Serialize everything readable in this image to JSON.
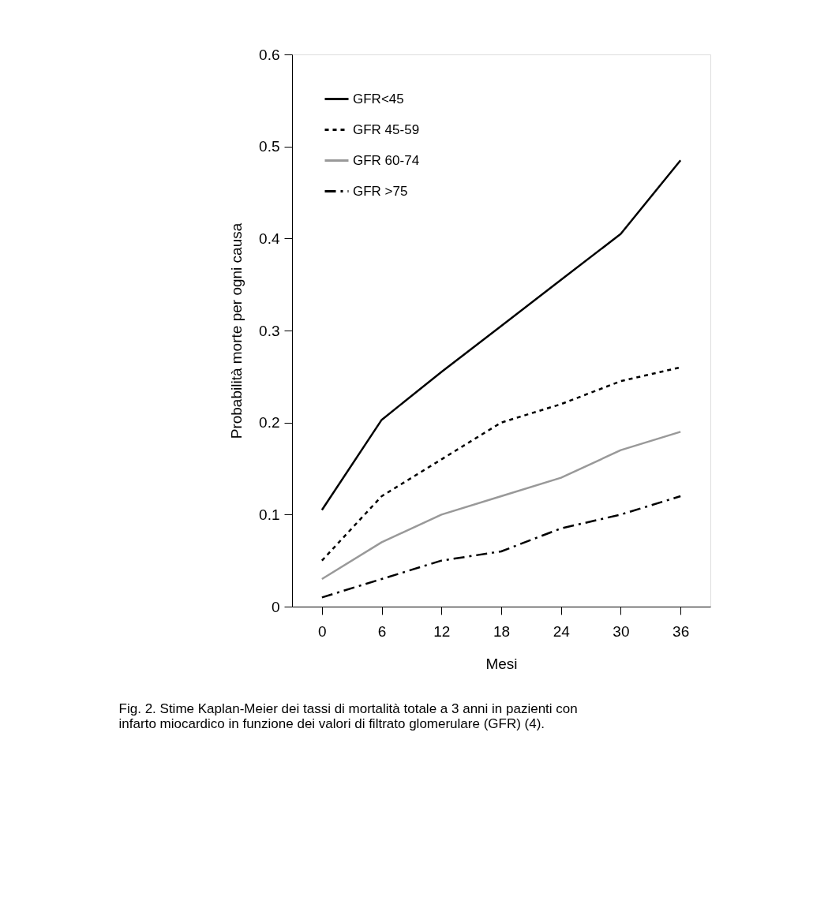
{
  "chart_data": {
    "type": "line",
    "xlabel": "Mesi",
    "ylabel": "Probabilità morte per ogni causa",
    "x": [
      0,
      6,
      12,
      18,
      24,
      30,
      36
    ],
    "series": [
      {
        "name": "GFR<45",
        "color": "#000000",
        "line_style": "solid",
        "values": [
          0.105,
          0.203,
          0.255,
          0.305,
          0.355,
          0.405,
          0.485
        ]
      },
      {
        "name": "GFR 45-59",
        "color": "#000000",
        "line_style": "dotted",
        "values": [
          0.05,
          0.12,
          0.16,
          0.2,
          0.22,
          0.245,
          0.26
        ]
      },
      {
        "name": "GFR 60-74",
        "color": "#999999",
        "line_style": "solid",
        "values": [
          0.03,
          0.07,
          0.1,
          0.12,
          0.14,
          0.17,
          0.19
        ]
      },
      {
        "name": "GFR >75",
        "color": "#000000",
        "line_style": "dashed",
        "values": [
          0.01,
          0.03,
          0.05,
          0.06,
          0.085,
          0.1,
          0.12
        ]
      }
    ],
    "xlim": [
      -3,
      39
    ],
    "xticks": [
      0,
      6,
      12,
      18,
      24,
      30,
      36
    ],
    "ylim": [
      0,
      0.6
    ],
    "yticks": [
      0,
      0.1,
      0.2,
      0.3,
      0.4,
      0.5,
      0.6
    ],
    "grid": false,
    "legend": "top left",
    "marker": "none",
    "annotations": [
      "Fig. 2. Stime Kaplan-Meier dei tassi di mortalità totale a 3 anni in pazienti con infarto miocardico in funzione dei valori di filtrato glomerulare (GFR) (4)."
    ]
  }
}
